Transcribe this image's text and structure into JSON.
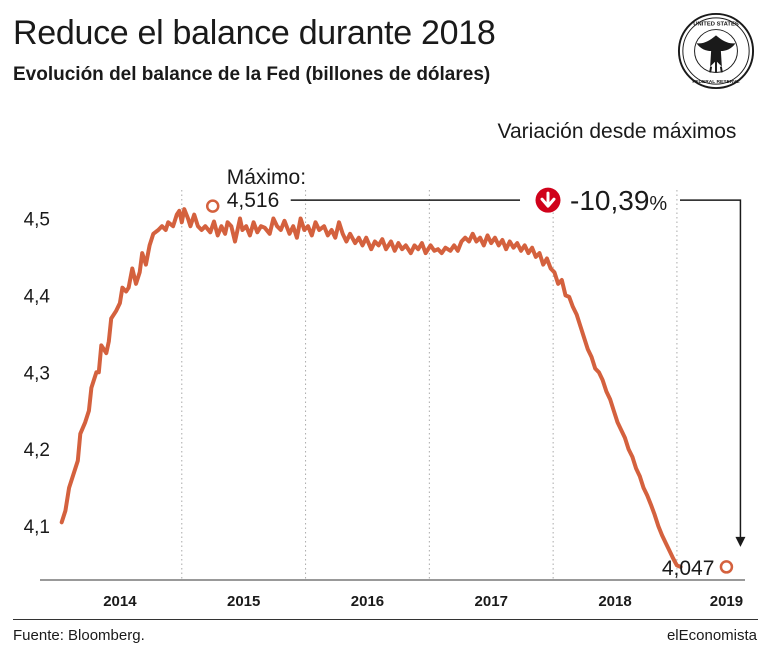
{
  "header": {
    "title": "Reduce el balance durante 2018",
    "subtitle": "Evolución del balance de la Fed (billones de dólares)"
  },
  "footer": {
    "source": "Fuente: Bloomberg.",
    "brand": "elEconomista"
  },
  "seal": {
    "icon": "federal-reserve-seal-icon",
    "top_text": "UNITED STATES",
    "bottom_text": "FEDERAL RESERVE SYSTEM"
  },
  "colors": {
    "line": "#d4613e",
    "arrow_badge": "#d0021b",
    "text": "#1a1a1a"
  },
  "chart_data": {
    "type": "line",
    "title": "Reduce el balance durante 2018",
    "subtitle": "Evolución del balance de la Fed (billones de dólares)",
    "xlabel": "",
    "ylabel": "",
    "x_ticks": [
      "2014",
      "2015",
      "2016",
      "2017",
      "2018",
      "2019"
    ],
    "y_ticks": [
      "4,1",
      "4,2",
      "4,3",
      "4,4",
      "4,5"
    ],
    "y_tick_values": [
      4.1,
      4.2,
      4.3,
      4.4,
      4.5
    ],
    "xlim": [
      2013.65,
      2019.2
    ],
    "ylim": [
      4.03,
      4.55
    ],
    "grid": false,
    "annotations": {
      "max_label": "Máximo:",
      "max_value": "4,516",
      "max_point": {
        "x": 2014.9,
        "y": 4.516
      },
      "last_value": "4,047",
      "last_point": {
        "x": 2019.05,
        "y": 4.047
      },
      "variation_label": "Variación desde máximos",
      "variation_value": "-10,39",
      "variation_unit": "%"
    },
    "series": [
      {
        "values": [
          [
            2013.68,
            4.105
          ],
          [
            2013.71,
            4.12
          ],
          [
            2013.74,
            4.15
          ],
          [
            2013.78,
            4.17
          ],
          [
            2013.81,
            4.185
          ],
          [
            2013.83,
            4.22
          ],
          [
            2013.87,
            4.235
          ],
          [
            2013.9,
            4.25
          ],
          [
            2013.92,
            4.28
          ],
          [
            2013.96,
            4.3
          ],
          [
            2013.98,
            4.3
          ],
          [
            2014.0,
            4.335
          ],
          [
            2014.04,
            4.325
          ],
          [
            2014.06,
            4.34
          ],
          [
            2014.08,
            4.37
          ],
          [
            2014.12,
            4.38
          ],
          [
            2014.15,
            4.39
          ],
          [
            2014.17,
            4.41
          ],
          [
            2014.2,
            4.405
          ],
          [
            2014.22,
            4.41
          ],
          [
            2014.25,
            4.435
          ],
          [
            2014.28,
            4.415
          ],
          [
            2014.31,
            4.43
          ],
          [
            2014.33,
            4.455
          ],
          [
            2014.36,
            4.44
          ],
          [
            2014.39,
            4.465
          ],
          [
            2014.42,
            4.48
          ],
          [
            2014.46,
            4.485
          ],
          [
            2014.49,
            4.49
          ],
          [
            2014.52,
            4.485
          ],
          [
            2014.54,
            4.495
          ],
          [
            2014.58,
            4.49
          ],
          [
            2014.61,
            4.505
          ],
          [
            2014.63,
            4.51
          ],
          [
            2014.65,
            4.495
          ],
          [
            2014.67,
            4.512
          ],
          [
            2014.7,
            4.5
          ],
          [
            2014.72,
            4.49
          ],
          [
            2014.75,
            4.505
          ],
          [
            2014.78,
            4.49
          ],
          [
            2014.81,
            4.485
          ],
          [
            2014.84,
            4.49
          ],
          [
            2014.88,
            4.482
          ],
          [
            2014.91,
            4.496
          ],
          [
            2014.94,
            4.478
          ],
          [
            2014.97,
            4.49
          ],
          [
            2015.0,
            4.48
          ],
          [
            2015.02,
            4.495
          ],
          [
            2015.05,
            4.49
          ],
          [
            2015.08,
            4.47
          ],
          [
            2015.12,
            4.5
          ],
          [
            2015.14,
            4.485
          ],
          [
            2015.17,
            4.49
          ],
          [
            2015.2,
            4.478
          ],
          [
            2015.23,
            4.495
          ],
          [
            2015.26,
            4.482
          ],
          [
            2015.29,
            4.49
          ],
          [
            2015.32,
            4.488
          ],
          [
            2015.36,
            4.48
          ],
          [
            2015.39,
            4.5
          ],
          [
            2015.42,
            4.49
          ],
          [
            2015.45,
            4.485
          ],
          [
            2015.48,
            4.497
          ],
          [
            2015.52,
            4.48
          ],
          [
            2015.55,
            4.49
          ],
          [
            2015.58,
            4.475
          ],
          [
            2015.61,
            4.5
          ],
          [
            2015.64,
            4.485
          ],
          [
            2015.67,
            4.49
          ],
          [
            2015.7,
            4.478
          ],
          [
            2015.73,
            4.495
          ],
          [
            2015.76,
            4.485
          ],
          [
            2015.8,
            4.49
          ],
          [
            2015.83,
            4.478
          ],
          [
            2015.86,
            4.485
          ],
          [
            2015.89,
            4.475
          ],
          [
            2015.92,
            4.495
          ],
          [
            2015.95,
            4.48
          ],
          [
            2015.98,
            4.47
          ],
          [
            2016.01,
            4.48
          ],
          [
            2016.05,
            4.468
          ],
          [
            2016.08,
            4.475
          ],
          [
            2016.11,
            4.465
          ],
          [
            2016.14,
            4.475
          ],
          [
            2016.18,
            4.46
          ],
          [
            2016.21,
            4.47
          ],
          [
            2016.24,
            4.465
          ],
          [
            2016.27,
            4.473
          ],
          [
            2016.3,
            4.46
          ],
          [
            2016.34,
            4.47
          ],
          [
            2016.37,
            4.458
          ],
          [
            2016.4,
            4.468
          ],
          [
            2016.43,
            4.46
          ],
          [
            2016.46,
            4.465
          ],
          [
            2016.5,
            4.455
          ],
          [
            2016.53,
            4.465
          ],
          [
            2016.56,
            4.46
          ],
          [
            2016.59,
            4.468
          ],
          [
            2016.62,
            4.455
          ],
          [
            2016.66,
            4.465
          ],
          [
            2016.69,
            4.458
          ],
          [
            2016.72,
            4.46
          ],
          [
            2016.75,
            4.455
          ],
          [
            2016.78,
            4.462
          ],
          [
            2016.82,
            4.458
          ],
          [
            2016.85,
            4.465
          ],
          [
            2016.88,
            4.458
          ],
          [
            2016.91,
            4.47
          ],
          [
            2016.94,
            4.475
          ],
          [
            2016.97,
            4.47
          ],
          [
            2017.0,
            4.48
          ],
          [
            2017.03,
            4.47
          ],
          [
            2017.06,
            4.475
          ],
          [
            2017.09,
            4.465
          ],
          [
            2017.12,
            4.478
          ],
          [
            2017.15,
            4.468
          ],
          [
            2017.18,
            4.475
          ],
          [
            2017.21,
            4.465
          ],
          [
            2017.24,
            4.472
          ],
          [
            2017.27,
            4.46
          ],
          [
            2017.3,
            4.47
          ],
          [
            2017.33,
            4.462
          ],
          [
            2017.36,
            4.468
          ],
          [
            2017.39,
            4.458
          ],
          [
            2017.42,
            4.465
          ],
          [
            2017.45,
            4.455
          ],
          [
            2017.48,
            4.462
          ],
          [
            2017.51,
            4.45
          ],
          [
            2017.54,
            4.455
          ],
          [
            2017.57,
            4.44
          ],
          [
            2017.6,
            4.448
          ],
          [
            2017.63,
            4.435
          ],
          [
            2017.66,
            4.43
          ],
          [
            2017.69,
            4.415
          ],
          [
            2017.72,
            4.42
          ],
          [
            2017.75,
            4.4
          ],
          [
            2017.78,
            4.398
          ],
          [
            2017.81,
            4.385
          ],
          [
            2017.84,
            4.375
          ],
          [
            2017.87,
            4.36
          ],
          [
            2017.9,
            4.345
          ],
          [
            2017.93,
            4.33
          ],
          [
            2017.96,
            4.32
          ],
          [
            2017.99,
            4.305
          ],
          [
            2018.02,
            4.3
          ],
          [
            2018.05,
            4.29
          ],
          [
            2018.08,
            4.275
          ],
          [
            2018.11,
            4.265
          ],
          [
            2018.14,
            4.25
          ],
          [
            2018.17,
            4.235
          ],
          [
            2018.2,
            4.225
          ],
          [
            2018.23,
            4.215
          ],
          [
            2018.26,
            4.2
          ],
          [
            2018.29,
            4.19
          ],
          [
            2018.32,
            4.175
          ],
          [
            2018.35,
            4.165
          ],
          [
            2018.38,
            4.15
          ],
          [
            2018.41,
            4.14
          ],
          [
            2018.44,
            4.128
          ],
          [
            2018.47,
            4.115
          ],
          [
            2018.5,
            4.1
          ],
          [
            2018.53,
            4.088
          ],
          [
            2018.56,
            4.078
          ],
          [
            2018.59,
            4.068
          ],
          [
            2018.62,
            4.058
          ],
          [
            2018.65,
            4.049
          ],
          [
            2018.68,
            4.047
          ]
        ]
      }
    ]
  }
}
